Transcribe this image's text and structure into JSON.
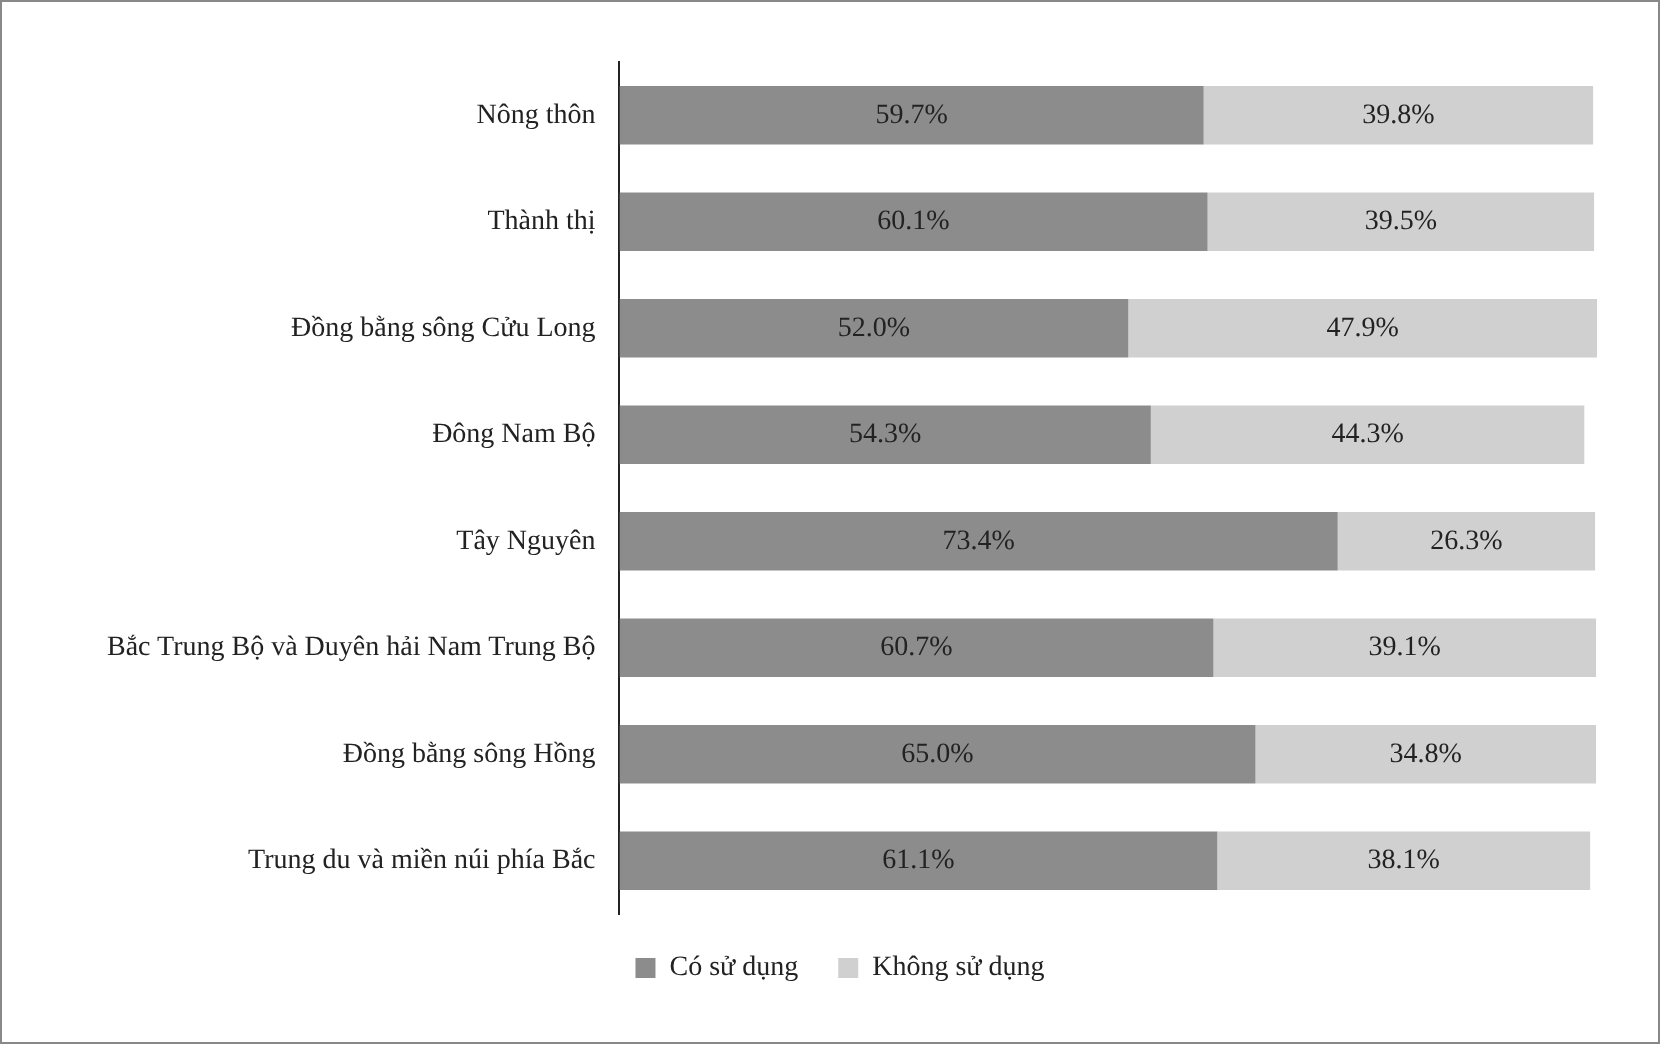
{
  "chart_data": {
    "type": "bar",
    "orientation": "horizontal",
    "stacked": true,
    "categories": [
      "Nông thôn",
      "Thành thị",
      "Đồng bằng sông Cửu Long",
      "Đông Nam Bộ",
      "Tây Nguyên",
      "Bắc Trung Bộ và Duyên hải Nam Trung Bộ",
      "Đồng bằng sông Hồng",
      "Trung du và miền núi phía Bắc"
    ],
    "series": [
      {
        "name": "Có sử dụng",
        "color": "#8c8c8c",
        "values": [
          59.7,
          60.1,
          52.0,
          54.3,
          73.4,
          60.7,
          65.0,
          61.1
        ],
        "value_labels": [
          "59.7%",
          "60.1%",
          "52.0%",
          "54.3%",
          "73.4%",
          "60.7%",
          "65.0%",
          "61.1%"
        ]
      },
      {
        "name": "Không sử dụng",
        "color": "#d0d0d0",
        "values": [
          39.8,
          39.5,
          47.9,
          44.3,
          26.3,
          39.1,
          34.8,
          38.1
        ],
        "value_labels": [
          "39.8%",
          "39.5%",
          "47.9%",
          "44.3%",
          "26.3%",
          "39.1%",
          "34.8%",
          "38.1%"
        ]
      }
    ],
    "xlim": [
      0,
      100
    ],
    "tick_labels": "y",
    "grid": false,
    "legend": "bottom"
  }
}
